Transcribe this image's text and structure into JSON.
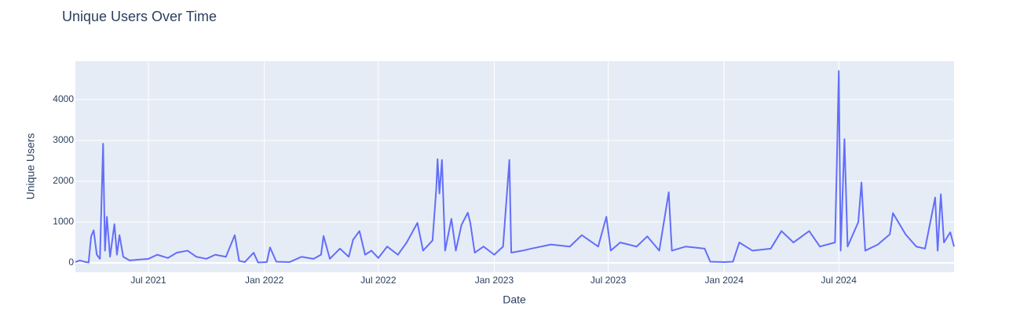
{
  "chart_data": {
    "type": "line",
    "title": "Unique Users Over Time",
    "x_label": "Date",
    "y_label": "Unique Users",
    "x": [
      "2021-03-07",
      "2021-03-14",
      "2021-03-21",
      "2021-03-28",
      "2021-04-01",
      "2021-04-05",
      "2021-04-10",
      "2021-04-15",
      "2021-04-20",
      "2021-04-23",
      "2021-04-26",
      "2021-05-01",
      "2021-05-08",
      "2021-05-12",
      "2021-05-16",
      "2021-05-22",
      "2021-06-01",
      "2021-06-15",
      "2021-07-01",
      "2021-07-15",
      "2021-08-01",
      "2021-08-15",
      "2021-09-01",
      "2021-09-15",
      "2021-10-01",
      "2021-10-15",
      "2021-11-01",
      "2021-11-15",
      "2021-11-22",
      "2021-12-01",
      "2021-12-15",
      "2021-12-22",
      "2022-01-05",
      "2022-01-10",
      "2022-01-20",
      "2022-02-10",
      "2022-03-01",
      "2022-03-20",
      "2022-04-01",
      "2022-04-05",
      "2022-04-15",
      "2022-05-01",
      "2022-05-15",
      "2022-05-22",
      "2022-06-01",
      "2022-06-10",
      "2022-06-20",
      "2022-07-01",
      "2022-07-15",
      "2022-08-01",
      "2022-08-15",
      "2022-09-01",
      "2022-09-10",
      "2022-09-25",
      "2022-10-01",
      "2022-10-03",
      "2022-10-06",
      "2022-10-10",
      "2022-10-15",
      "2022-10-25",
      "2022-11-01",
      "2022-11-10",
      "2022-11-20",
      "2022-11-24",
      "2022-12-01",
      "2022-12-15",
      "2023-01-01",
      "2023-01-15",
      "2023-01-25",
      "2023-01-28",
      "2023-02-15",
      "2023-03-01",
      "2023-04-01",
      "2023-05-01",
      "2023-05-20",
      "2023-06-15",
      "2023-06-28",
      "2023-07-05",
      "2023-07-20",
      "2023-08-15",
      "2023-09-01",
      "2023-09-20",
      "2023-10-05",
      "2023-10-10",
      "2023-11-01",
      "2023-12-01",
      "2023-12-10",
      "2024-01-01",
      "2024-01-15",
      "2024-01-25",
      "2024-02-15",
      "2024-03-15",
      "2024-04-01",
      "2024-04-20",
      "2024-05-15",
      "2024-06-01",
      "2024-06-25",
      "2024-06-28",
      "2024-07-01",
      "2024-07-04",
      "2024-07-10",
      "2024-07-15",
      "2024-08-01",
      "2024-08-06",
      "2024-08-12",
      "2024-09-01",
      "2024-09-20",
      "2024-09-25",
      "2024-10-15",
      "2024-11-01",
      "2024-11-15",
      "2024-12-01",
      "2024-12-05",
      "2024-12-10",
      "2024-12-15",
      "2024-12-25",
      "2024-12-31"
    ],
    "series": [
      {
        "name": "Unique Users",
        "color": "#636efa",
        "values": [
          20,
          60,
          30,
          10,
          650,
          800,
          200,
          100,
          2920,
          300,
          1130,
          150,
          950,
          200,
          680,
          150,
          60,
          80,
          100,
          200,
          120,
          250,
          300,
          150,
          100,
          200,
          150,
          680,
          50,
          20,
          250,
          10,
          20,
          380,
          30,
          20,
          150,
          100,
          200,
          660,
          100,
          350,
          150,
          570,
          780,
          200,
          300,
          120,
          400,
          200,
          500,
          980,
          300,
          550,
          1820,
          2540,
          1700,
          2520,
          300,
          1080,
          300,
          930,
          1230,
          980,
          250,
          400,
          200,
          400,
          2520,
          250,
          300,
          350,
          450,
          400,
          680,
          400,
          1130,
          300,
          500,
          400,
          650,
          300,
          1730,
          300,
          400,
          350,
          30,
          20,
          30,
          500,
          300,
          350,
          780,
          500,
          780,
          400,
          500,
          2480,
          4700,
          300,
          3030,
          400,
          1000,
          1970,
          300,
          450,
          700,
          1220,
          700,
          400,
          350,
          1600,
          300,
          1680,
          500,
          750,
          400
        ]
      }
    ],
    "xlim": [
      "2021-03-07",
      "2024-12-31"
    ],
    "xticks": [
      {
        "value": "2021-07-01",
        "label": "Jul 2021"
      },
      {
        "value": "2022-01-01",
        "label": "Jan 2022"
      },
      {
        "value": "2022-07-01",
        "label": "Jul 2022"
      },
      {
        "value": "2023-01-01",
        "label": "Jan 2023"
      },
      {
        "value": "2023-07-01",
        "label": "Jul 2023"
      },
      {
        "value": "2024-01-01",
        "label": "Jan 2024"
      },
      {
        "value": "2024-07-01",
        "label": "Jul 2024"
      }
    ],
    "ylim": [
      -230,
      4940
    ],
    "yticks": [
      0,
      1000,
      2000,
      3000,
      4000
    ],
    "grid": true
  }
}
